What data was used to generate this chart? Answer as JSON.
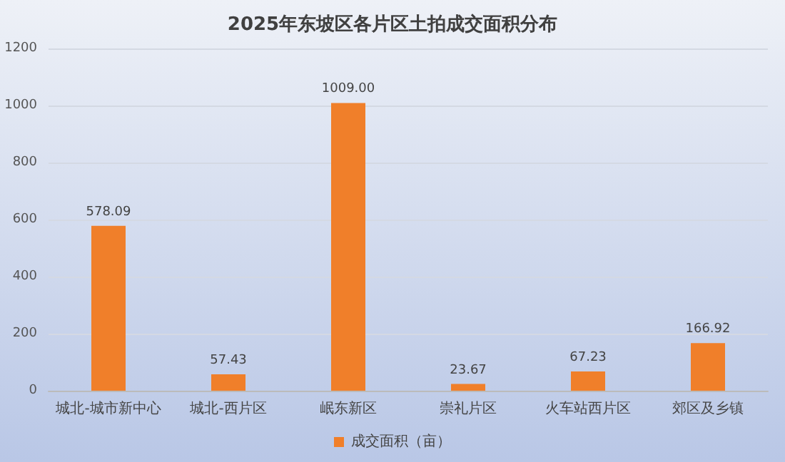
{
  "chart_data": {
    "type": "bar",
    "title": "2025年东坡区各片区土拍成交面积分布",
    "categories": [
      "城北-城市新中心",
      "城北-西片区",
      "岷东新区",
      "崇礼片区",
      "火车站西片区",
      "郊区及乡镇"
    ],
    "series": [
      {
        "name": "成交面积（亩）",
        "color": "#f07f2a",
        "values": [
          578.09,
          57.43,
          1009.0,
          23.67,
          67.23,
          166.92
        ],
        "value_labels": [
          "578.09",
          "57.43",
          "1009.00",
          "23.67",
          "67.23",
          "166.92"
        ]
      }
    ],
    "ylim": [
      0,
      1200
    ],
    "yticks": [
      0,
      200,
      400,
      600,
      800,
      1000,
      1200
    ],
    "grid": "y",
    "legend": "bottom"
  }
}
